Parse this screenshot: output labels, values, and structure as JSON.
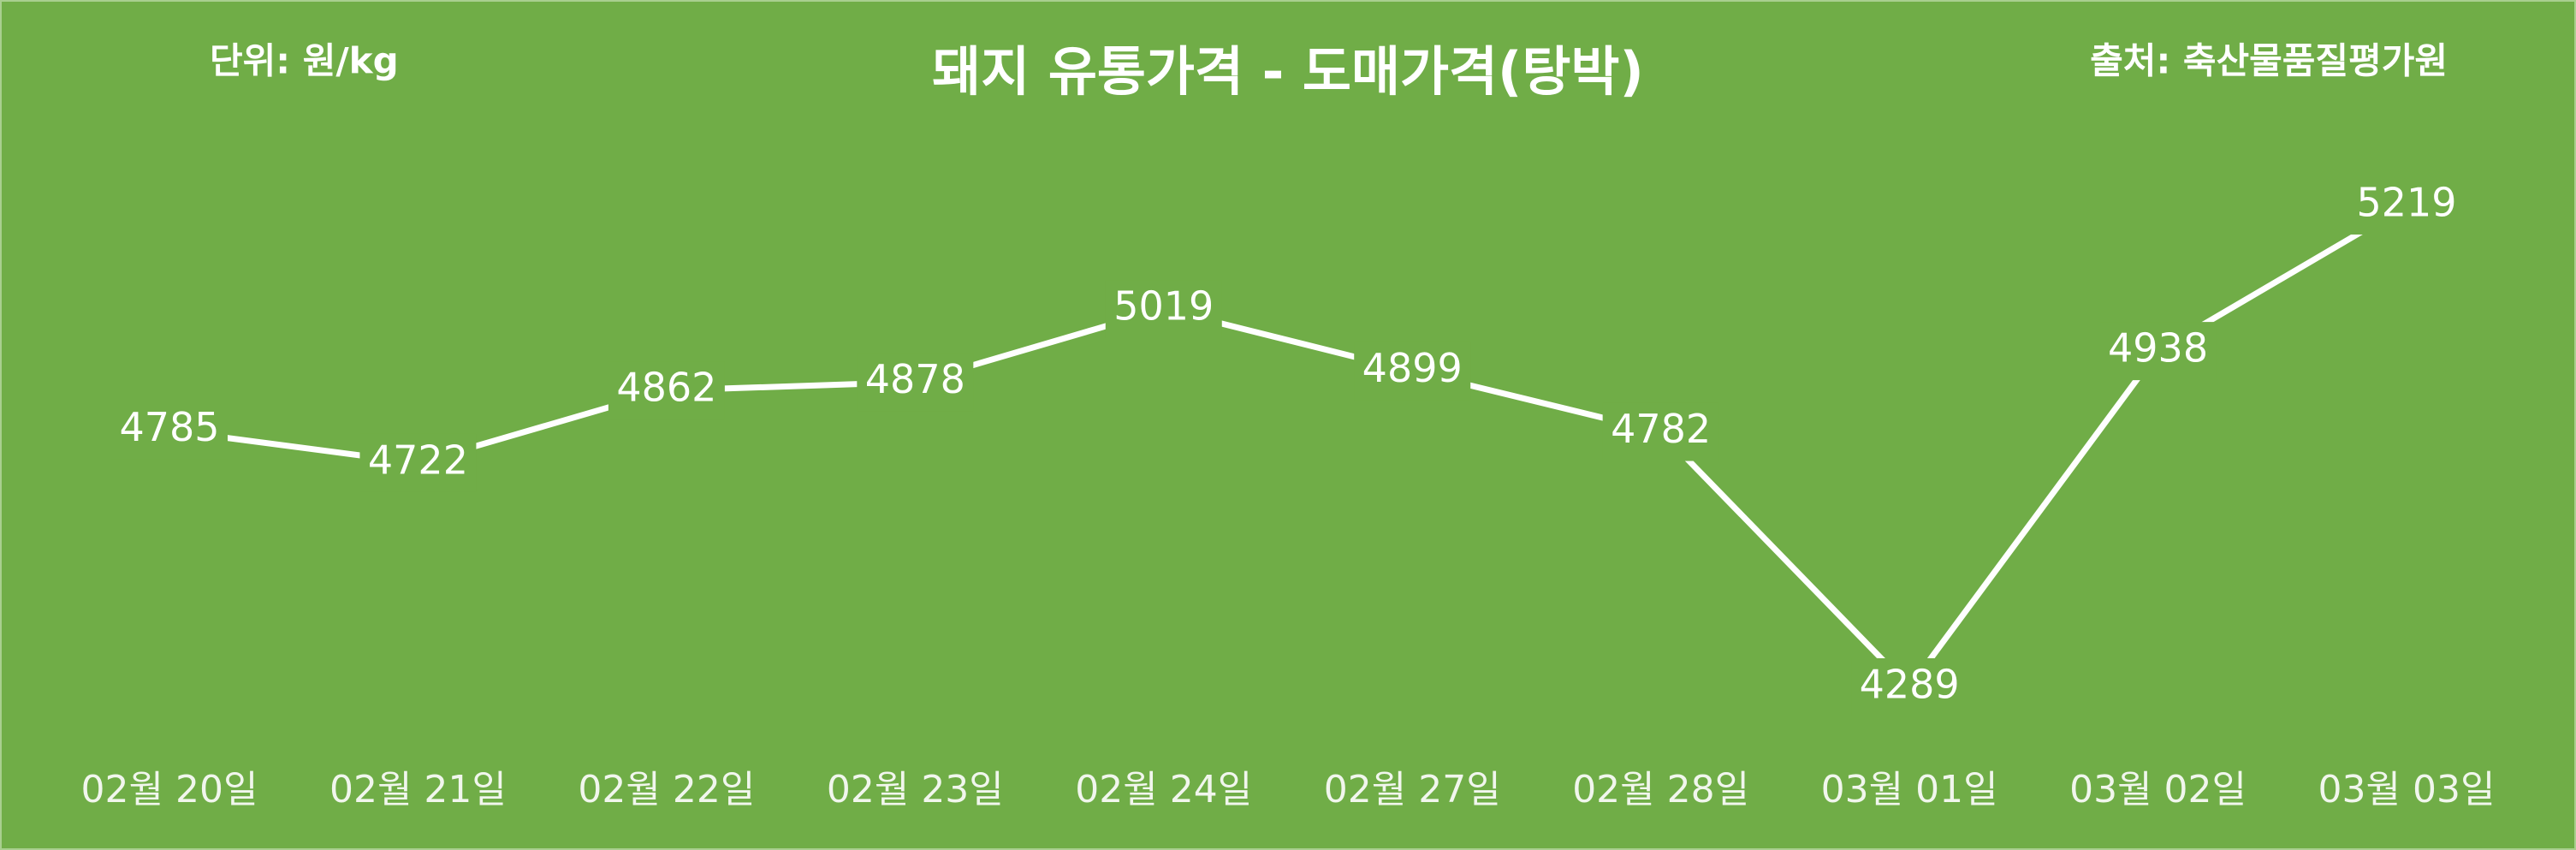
{
  "chart_data": {
    "type": "line",
    "title": "돼지 유통가격 - 도매가격(탕박)",
    "unit_note": "단위: 원/kg",
    "source_note": "출처: 축산물품질평가원",
    "categories": [
      "02월 20일",
      "02월 21일",
      "02월 22일",
      "02월 23일",
      "02월 24일",
      "02월 27일",
      "02월 28일",
      "03월 01일",
      "03월 02일",
      "03월 03일"
    ],
    "values": [
      4785,
      4722,
      4862,
      4878,
      5019,
      4899,
      4782,
      4289,
      4938,
      5219
    ],
    "color": "#ffffff"
  }
}
